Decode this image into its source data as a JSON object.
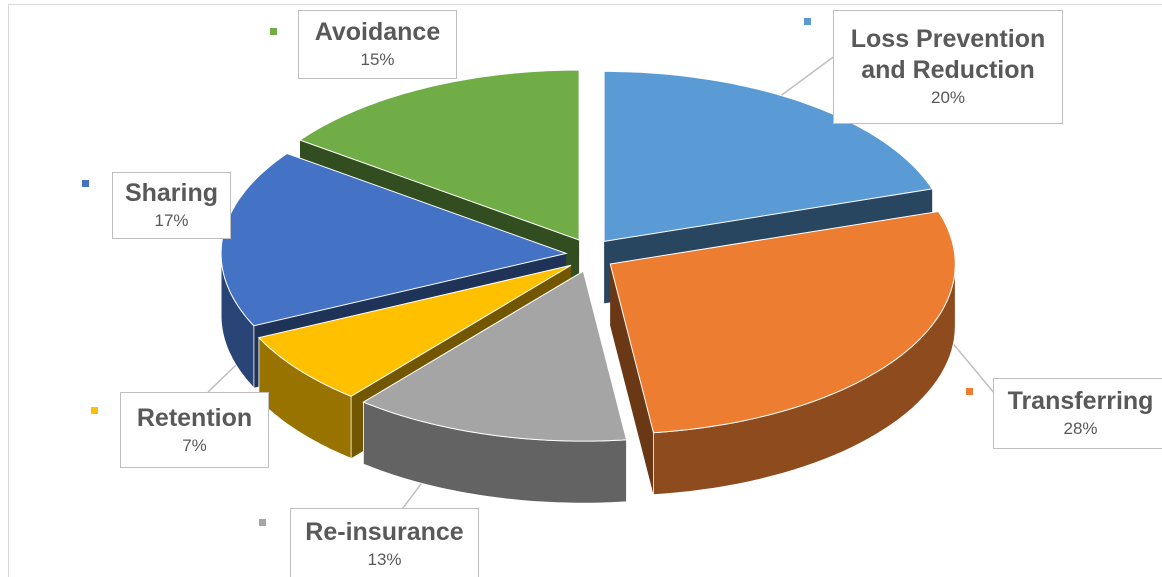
{
  "chart_data": {
    "type": "pie3d",
    "categories": [
      "Loss Prevention and Reduction",
      "Transferring",
      "Re-insurance",
      "Retention",
      "Sharing",
      "Avoidance"
    ],
    "values": [
      20,
      28,
      13,
      7,
      17,
      15
    ],
    "value_labels": [
      "20%",
      "28%",
      "13%",
      "7%",
      "17%",
      "15%"
    ],
    "colors": [
      "#5b9bd5",
      "#ed7d31",
      "#a5a5a5",
      "#ffc000",
      "#4472c4",
      "#70ad47"
    ]
  }
}
